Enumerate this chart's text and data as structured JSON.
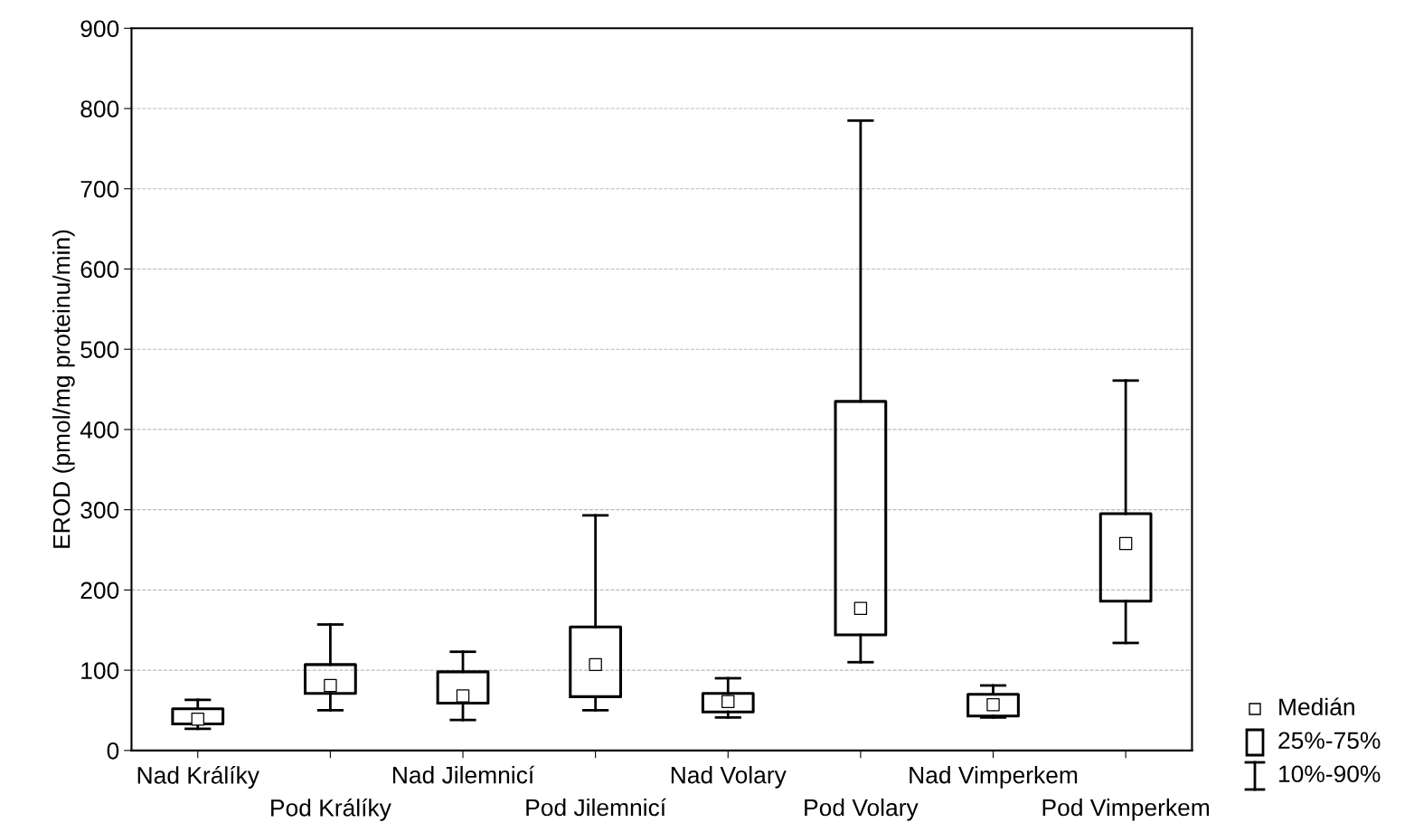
{
  "chart_data": {
    "type": "box",
    "ylabel": "EROD (pmol/mg proteinu/min)",
    "categories": [
      "Nad Králíky",
      "Pod Králíky",
      "Nad Jilemnicí",
      "Pod Jilemnicí",
      "Nad Volary",
      "Pod Volary",
      "Nad Vimperkem",
      "Pod Vimperkem"
    ],
    "boxes": [
      {
        "low": 27,
        "q1": 33,
        "median": 39,
        "q3": 52,
        "high": 63
      },
      {
        "low": 50,
        "q1": 71,
        "median": 81,
        "q3": 107,
        "high": 157
      },
      {
        "low": 38,
        "q1": 59,
        "median": 68,
        "q3": 98,
        "high": 123
      },
      {
        "low": 50,
        "q1": 67,
        "median": 107,
        "q3": 154,
        "high": 293
      },
      {
        "low": 41,
        "q1": 48,
        "median": 61,
        "q3": 71,
        "high": 90
      },
      {
        "low": 110,
        "q1": 144,
        "median": 177,
        "q3": 435,
        "high": 785
      },
      {
        "low": 41,
        "q1": 43,
        "median": 57,
        "q3": 70,
        "high": 81
      },
      {
        "low": 134,
        "q1": 186,
        "median": 258,
        "q3": 295,
        "high": 461
      }
    ],
    "ylim": [
      0,
      900
    ],
    "yticks": [
      0,
      100,
      200,
      300,
      400,
      500,
      600,
      700,
      800,
      900
    ],
    "grid": "y",
    "annotations": [
      "Medián",
      "25%-75%",
      "10%-90%"
    ]
  }
}
